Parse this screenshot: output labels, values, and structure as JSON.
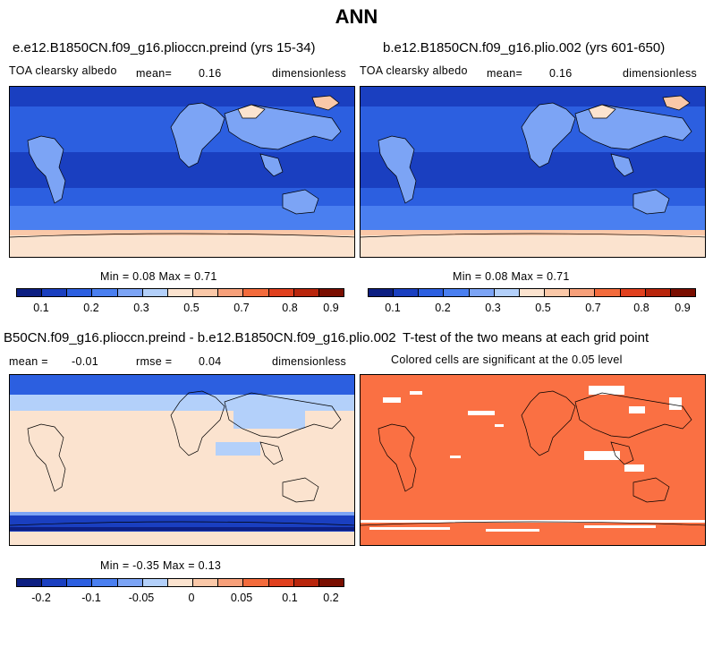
{
  "title": "ANN",
  "panels": [
    {
      "title": "e.e12.B1850CN.f09_g16.plioccn.preind (yrs 15-34)",
      "variable": "TOA clearsky albedo",
      "mean_label": "mean=",
      "mean_value": "0.16",
      "units": "dimensionless",
      "min_max": "Min =   0.08 Max =    0.71"
    },
    {
      "title": "b.e12.B1850CN.f09_g16.plio.002 (yrs 601-650)",
      "variable": "TOA clearsky albedo",
      "mean_label": "mean=",
      "mean_value": "0.16",
      "units": "dimensionless",
      "min_max": "Min =   0.08 Max =    0.71"
    },
    {
      "title": "B50CN.f09_g16.plioccn.preind - b.e12.B1850CN.f09_g16.plio.002",
      "mean_label": "mean =",
      "mean_value": "-0.01",
      "rmse_label": "rmse =",
      "rmse_value": "0.04",
      "units": "dimensionless",
      "min_max": "Min =  -0.35 Max =    0.13"
    },
    {
      "title": "T-test of the two means at each grid point",
      "subtitle": "Colored cells are significant at the 0.05 level"
    }
  ],
  "colorbar_abs": {
    "colors": [
      "#0d1f82",
      "#1a3fc0",
      "#2c5fe0",
      "#4a7ff0",
      "#7ca4f5",
      "#b3d0fa",
      "#fbe3cf",
      "#fac8a8",
      "#f7a07a",
      "#f36b3c",
      "#e0401e",
      "#b8250c",
      "#7a0e00"
    ],
    "ticks": [
      "0.1",
      "0.2",
      "0.3",
      "0.5",
      "0.7",
      "0.8",
      "0.9"
    ]
  },
  "colorbar_diff": {
    "colors": [
      "#0d1f82",
      "#1a3fc0",
      "#2c5fe0",
      "#4a7ff0",
      "#7ca4f5",
      "#b3d0fa",
      "#fbe3cf",
      "#fac8a8",
      "#f7a07a",
      "#f36b3c",
      "#e0401e",
      "#b8250c",
      "#7a0e00"
    ],
    "ticks": [
      "-0.2",
      "-0.1",
      "-0.05",
      "0",
      "0.05",
      "0.1",
      "0.2"
    ]
  },
  "ttest_color": "#fa7043"
}
